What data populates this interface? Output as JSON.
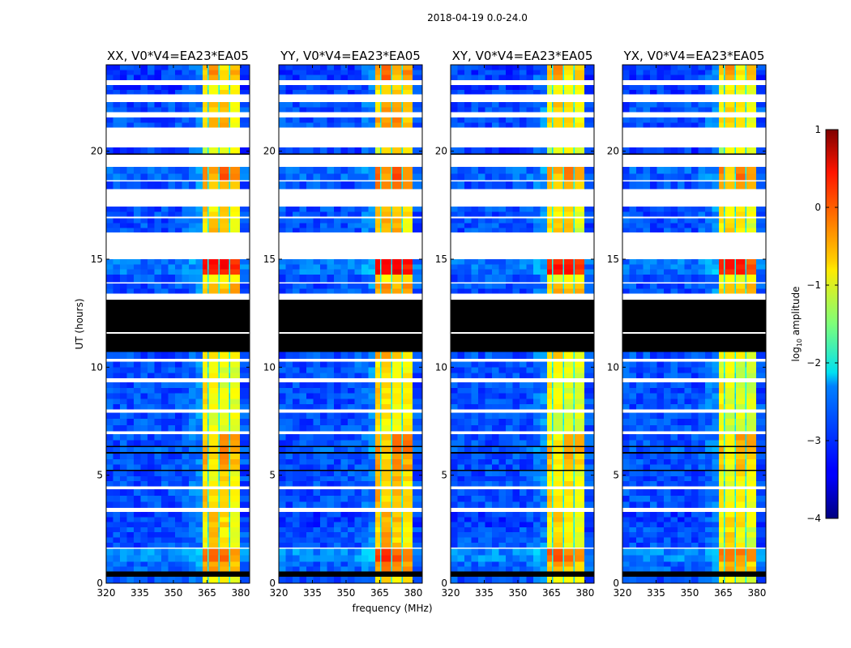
{
  "chart_data": {
    "type": "heatmap",
    "title": "2018-04-19 0.0-24.0",
    "xlabel": "frequency (MHz)",
    "ylabel": "UT (hours)",
    "xlim": [
      320,
      384
    ],
    "ylim": [
      0,
      24
    ],
    "xticks": [
      "320",
      "335",
      "350",
      "365",
      "380"
    ],
    "xtick_values": [
      320,
      335,
      350,
      365,
      380
    ],
    "yticks": [
      "0",
      "5",
      "10",
      "15",
      "20"
    ],
    "ytick_values": [
      0,
      5,
      10,
      15,
      20
    ],
    "panels": [
      {
        "title": "XX, V0*V4=EA23*EA05",
        "level_offset": 0.0
      },
      {
        "title": "YY, V0*V4=EA23*EA05",
        "level_offset": 0.15
      },
      {
        "title": "XY, V0*V4=EA23*EA05",
        "level_offset": -0.05
      },
      {
        "title": "YX, V0*V4=EA23*EA05",
        "level_offset": -0.1
      }
    ],
    "frequency_regions": [
      {
        "f0": 320,
        "f1": 363,
        "kind": "background"
      },
      {
        "f0": 363,
        "f1": 365.2,
        "kind": "band",
        "band": 0
      },
      {
        "f0": 365.2,
        "f1": 365.8,
        "kind": "channel-gap"
      },
      {
        "f0": 365.8,
        "f1": 370,
        "kind": "band",
        "band": 1
      },
      {
        "f0": 370,
        "f1": 370.6,
        "kind": "channel-gap"
      },
      {
        "f0": 370.6,
        "f1": 374.8,
        "kind": "band",
        "band": 2
      },
      {
        "f0": 374.8,
        "f1": 375.4,
        "kind": "channel-gap"
      },
      {
        "f0": 375.4,
        "f1": 379.7,
        "kind": "band",
        "band": 3
      },
      {
        "f0": 379.7,
        "f1": 384,
        "kind": "background"
      }
    ],
    "time_segments": [
      {
        "t0": 0,
        "t1": 0.3,
        "kind": "data",
        "bg": -3.0,
        "bands": [
          -0.9,
          -0.8,
          -0.9,
          -0.9
        ]
      },
      {
        "t0": 0.3,
        "t1": 0.55,
        "kind": "flag"
      },
      {
        "t0": 0.55,
        "t1": 1.0,
        "kind": "data",
        "bg": -2.9,
        "bands": [
          -0.5,
          -0.4,
          -0.5,
          -0.6
        ]
      },
      {
        "t0": 1.0,
        "t1": 1.6,
        "kind": "data",
        "bg": -2.7,
        "bands": [
          -0.1,
          0.0,
          -0.2,
          -0.3
        ]
      },
      {
        "t0": 1.6,
        "t1": 1.66,
        "kind": "gap"
      },
      {
        "t0": 1.66,
        "t1": 2.6,
        "kind": "data",
        "bg": -3.0,
        "bands": [
          -0.9,
          -0.6,
          -0.8,
          -1.0
        ]
      },
      {
        "t0": 2.6,
        "t1": 3.3,
        "kind": "data",
        "bg": -3.1,
        "bands": [
          -0.8,
          -0.6,
          -0.7,
          -0.9
        ]
      },
      {
        "t0": 3.3,
        "t1": 3.5,
        "kind": "gap"
      },
      {
        "t0": 3.5,
        "t1": 4.35,
        "kind": "data",
        "bg": -3.0,
        "bands": [
          -0.6,
          -0.8,
          -0.7,
          -0.9
        ]
      },
      {
        "t0": 4.35,
        "t1": 4.5,
        "kind": "gap"
      },
      {
        "t0": 4.5,
        "t1": 5.2,
        "kind": "data",
        "bg": -3.0,
        "bands": [
          -0.8,
          -0.9,
          -0.7,
          -0.9
        ]
      },
      {
        "t0": 5.2,
        "t1": 5.26,
        "kind": "flag"
      },
      {
        "t0": 5.26,
        "t1": 6.0,
        "kind": "data",
        "bg": -3.0,
        "bands": [
          -0.5,
          -0.8,
          -0.4,
          -0.6
        ]
      },
      {
        "t0": 6.0,
        "t1": 6.08,
        "kind": "flag"
      },
      {
        "t0": 6.08,
        "t1": 6.3,
        "kind": "data",
        "bg": -2.9,
        "bands": [
          -0.4,
          -0.8,
          -0.3,
          -0.4
        ]
      },
      {
        "t0": 6.3,
        "t1": 6.36,
        "kind": "flag"
      },
      {
        "t0": 6.36,
        "t1": 6.9,
        "kind": "data",
        "bg": -3.0,
        "bands": [
          -0.7,
          -0.8,
          -0.3,
          -0.3
        ]
      },
      {
        "t0": 6.9,
        "t1": 7.05,
        "kind": "gap"
      },
      {
        "t0": 7.05,
        "t1": 7.9,
        "kind": "data",
        "bg": -3.0,
        "bands": [
          -0.9,
          -1.0,
          -1.0,
          -1.0
        ]
      },
      {
        "t0": 7.9,
        "t1": 8.05,
        "kind": "gap"
      },
      {
        "t0": 8.05,
        "t1": 9.3,
        "kind": "data",
        "bg": -3.0,
        "bands": [
          -0.7,
          -0.9,
          -1.0,
          -1.0
        ]
      },
      {
        "t0": 9.3,
        "t1": 9.5,
        "kind": "gap"
      },
      {
        "t0": 9.5,
        "t1": 10.25,
        "kind": "data",
        "bg": -3.0,
        "bands": [
          -0.9,
          -0.8,
          -1.0,
          -1.0
        ]
      },
      {
        "t0": 10.25,
        "t1": 10.4,
        "kind": "gap"
      },
      {
        "t0": 10.4,
        "t1": 10.7,
        "kind": "data",
        "bg": -3.0,
        "bands": [
          -0.6,
          -0.6,
          -0.8,
          -0.9
        ]
      },
      {
        "t0": 10.7,
        "t1": 11.55,
        "kind": "flag"
      },
      {
        "t0": 11.55,
        "t1": 11.62,
        "kind": "gap"
      },
      {
        "t0": 11.62,
        "t1": 13.12,
        "kind": "flag"
      },
      {
        "t0": 13.12,
        "t1": 13.42,
        "kind": "gap"
      },
      {
        "t0": 13.42,
        "t1": 13.87,
        "kind": "data",
        "bg": -3.0,
        "bands": [
          -0.6,
          -0.5,
          -0.6,
          -0.5
        ]
      },
      {
        "t0": 13.87,
        "t1": 13.95,
        "kind": "gap"
      },
      {
        "t0": 13.95,
        "t1": 14.3,
        "kind": "data",
        "bg": -3.0,
        "bands": [
          -0.8,
          -0.9,
          -0.9,
          -0.9
        ]
      },
      {
        "t0": 14.3,
        "t1": 15.0,
        "kind": "data",
        "bg": -2.8,
        "bands": [
          0.3,
          0.3,
          0.3,
          0.1
        ]
      },
      {
        "t0": 15.0,
        "t1": 16.24,
        "kind": "gap"
      },
      {
        "t0": 16.24,
        "t1": 16.9,
        "kind": "data",
        "bg": -3.0,
        "bands": [
          -0.7,
          -0.6,
          -0.6,
          -1.0
        ]
      },
      {
        "t0": 16.9,
        "t1": 16.98,
        "kind": "gap"
      },
      {
        "t0": 16.98,
        "t1": 17.43,
        "kind": "data",
        "bg": -3.0,
        "bands": [
          -0.6,
          -0.8,
          -0.7,
          -0.9
        ]
      },
      {
        "t0": 17.43,
        "t1": 18.26,
        "kind": "gap"
      },
      {
        "t0": 18.26,
        "t1": 18.6,
        "kind": "data",
        "bg": -3.0,
        "bands": [
          -0.4,
          -0.5,
          -0.4,
          -0.5
        ]
      },
      {
        "t0": 18.6,
        "t1": 18.66,
        "kind": "gap"
      },
      {
        "t0": 18.66,
        "t1": 19.27,
        "kind": "data",
        "bg": -2.9,
        "bands": [
          -0.2,
          -0.5,
          -0.1,
          -0.4
        ]
      },
      {
        "t0": 19.27,
        "t1": 19.83,
        "kind": "gap"
      },
      {
        "t0": 19.83,
        "t1": 19.9,
        "kind": "flag"
      },
      {
        "t0": 19.9,
        "t1": 20.17,
        "kind": "data",
        "bg": -3.1,
        "bands": [
          -1.2,
          -0.9,
          -0.9,
          -1.0
        ]
      },
      {
        "t0": 20.17,
        "t1": 21.1,
        "kind": "gap"
      },
      {
        "t0": 21.1,
        "t1": 21.57,
        "kind": "data",
        "bg": -3.0,
        "bands": [
          -0.6,
          -0.6,
          -0.5,
          -0.8
        ]
      },
      {
        "t0": 21.57,
        "t1": 21.82,
        "kind": "gap"
      },
      {
        "t0": 21.82,
        "t1": 22.27,
        "kind": "data",
        "bg": -3.0,
        "bands": [
          -0.8,
          -0.6,
          -0.6,
          -0.8
        ]
      },
      {
        "t0": 22.27,
        "t1": 22.65,
        "kind": "gap"
      },
      {
        "t0": 22.65,
        "t1": 23.06,
        "kind": "data",
        "bg": -3.1,
        "bands": [
          -0.9,
          -0.8,
          -0.8,
          -0.9
        ]
      },
      {
        "t0": 23.06,
        "t1": 23.3,
        "kind": "gap"
      },
      {
        "t0": 23.3,
        "t1": 24.0,
        "kind": "data",
        "bg": -3.1,
        "bands": [
          -0.6,
          -0.3,
          -0.7,
          -0.5
        ]
      }
    ],
    "colorbar": {
      "label": "log",
      "label_sub": "10",
      "label_rest": " amplitude",
      "range": [
        -4,
        1
      ],
      "ticks": [
        "1",
        "0",
        "−1",
        "−2",
        "−3",
        "−4"
      ],
      "tick_values": [
        1,
        0,
        -1,
        -2,
        -3,
        -4
      ],
      "colormap": "jet"
    },
    "colors": {
      "flagged": "#000000",
      "no_data": "#ffffff"
    }
  }
}
